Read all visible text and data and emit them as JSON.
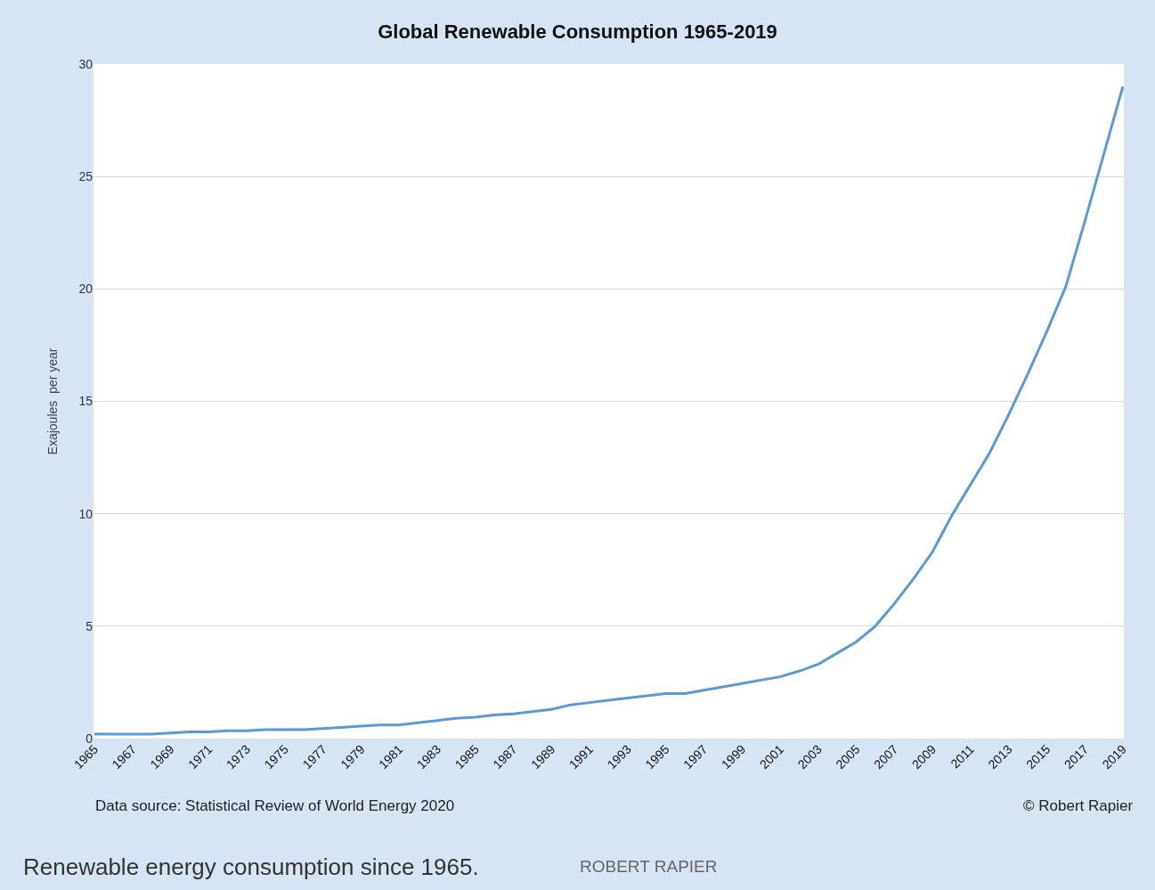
{
  "chart_data": {
    "type": "line",
    "title": "Global Renewable Consumption 1965-2019",
    "ylabel": "Exajoules  per year",
    "categories": [
      "1965",
      null,
      "1967",
      null,
      "1969",
      null,
      "1971",
      null,
      "1973",
      null,
      "1975",
      null,
      "1977",
      null,
      "1979",
      null,
      "1981",
      null,
      "1983",
      null,
      "1985",
      null,
      "1987",
      null,
      "1989",
      null,
      "1991",
      null,
      "1993",
      null,
      "1995",
      null,
      "1997",
      null,
      "1999",
      null,
      "2001",
      null,
      "2003",
      null,
      "2005",
      null,
      "2007",
      null,
      "2009",
      null,
      "2011",
      null,
      "2013",
      null,
      "2015",
      null,
      "2017",
      null,
      "2019"
    ],
    "series": [
      {
        "color": "#5b9bd5",
        "values": [
          0.2,
          0.2,
          0.2,
          0.2,
          0.25,
          0.3,
          0.3,
          0.35,
          0.35,
          0.4,
          0.4,
          0.4,
          0.45,
          0.5,
          0.55,
          0.6,
          0.6,
          0.7,
          0.8,
          0.9,
          0.95,
          1.05,
          1.1,
          1.2,
          1.3,
          1.5,
          1.6,
          1.7,
          1.8,
          1.9,
          2.0,
          2.0,
          2.15,
          2.3,
          2.45,
          2.6,
          2.75,
          3.0,
          3.3,
          3.8,
          4.3,
          5.0,
          6.0,
          7.1,
          8.3,
          9.9,
          11.3,
          12.7,
          14.4,
          16.2,
          18.1,
          20.1,
          23.0,
          26.0,
          29.0
        ]
      }
    ],
    "ylim": [
      0,
      30
    ],
    "yticks": [
      0,
      5,
      10,
      15,
      20,
      25,
      30
    ],
    "grid": "y",
    "marker": "none",
    "line_style": "solid",
    "annotations": [
      "Data source: Statistical Review of World Energy 2020",
      "© Robert Rapier",
      "Renewable energy consumption since 1965.",
      "ROBERT RAPIER"
    ]
  }
}
